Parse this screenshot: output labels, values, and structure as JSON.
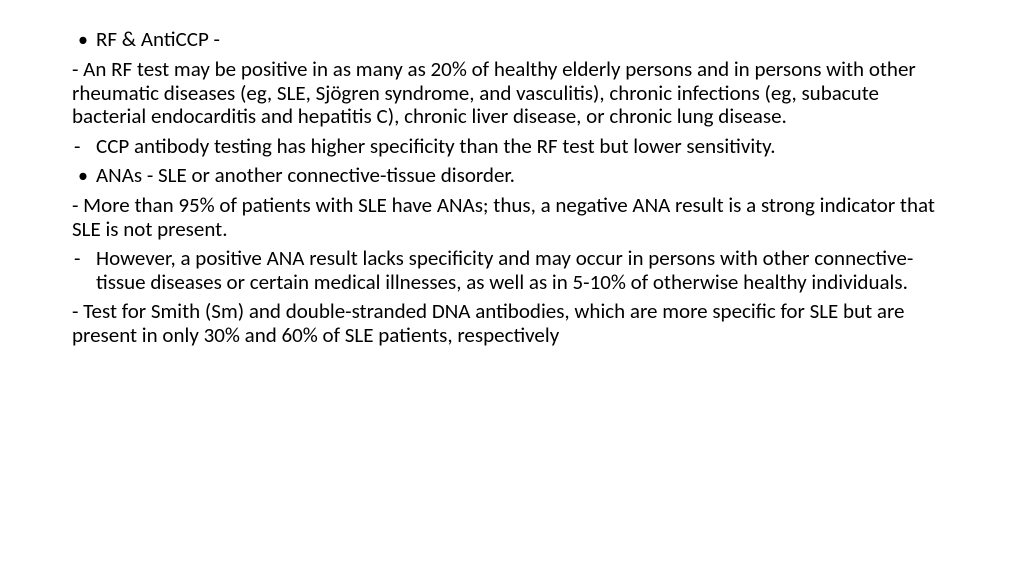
{
  "slide": {
    "font_family": "Calibri",
    "font_size_pt": 21,
    "text_color": "#000000",
    "background_color": "#ffffff",
    "items": {
      "b0": "RF & AntiCCP -",
      "d0": "- An RF test may be positive in as many as 20% of healthy elderly persons and in persons with other rheumatic diseases (eg, SLE, Sjögren syndrome, and vasculitis), chronic infections (eg, subacute bacterial endocarditis and hepatitis C), chronic liver disease, or chronic lung disease.",
      "d1": "CCP antibody testing has higher specificity than the RF test but lower sensitivity.",
      "b1": "ANAs - SLE or another connective-tissue disorder.",
      "d2": "- More than 95% of patients with SLE have ANAs; thus, a negative ANA result is a strong indicator that SLE is not present.",
      "d3": "However, a positive ANA result lacks specificity and may occur in persons with other connective-tissue diseases or certain medical illnesses, as well as in 5-10% of otherwise healthy individuals.",
      "d4": "- Test for Smith (Sm) and double-stranded DNA antibodies, which are more specific for SLE but are present in only 30% and 60% of SLE patients, respectively"
    },
    "markers": {
      "bullet": "•",
      "dash": "-"
    }
  }
}
